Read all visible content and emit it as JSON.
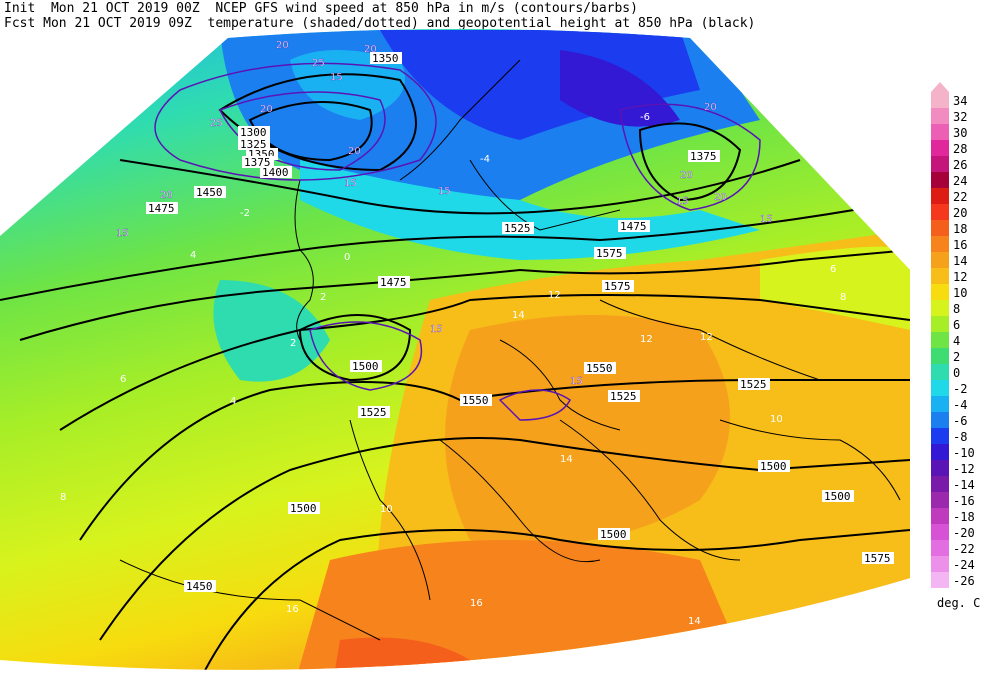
{
  "header": {
    "init_line": "Init  Mon 21 OCT 2019 00Z  NCEP GFS wind speed at 850 hPa in m/s (contours/barbs)",
    "fcst_line": "Fcst Mon 21 OCT 2019 09Z  temperature (shaded/dotted) and geopotential height at 850 hPa (black)"
  },
  "colorbar": {
    "unit": "deg. C",
    "levels": [
      {
        "label": "34",
        "color": "#f4b3c8"
      },
      {
        "label": "32",
        "color": "#f28cc0"
      },
      {
        "label": "30",
        "color": "#ec5fb4"
      },
      {
        "label": "28",
        "color": "#e0279c"
      },
      {
        "label": "26",
        "color": "#c4157a"
      },
      {
        "label": "24",
        "color": "#a5003a"
      },
      {
        "label": "22",
        "color": "#dd1c14"
      },
      {
        "label": "20",
        "color": "#f5381d"
      },
      {
        "label": "18",
        "color": "#f45f1b"
      },
      {
        "label": "16",
        "color": "#f7831c"
      },
      {
        "label": "14",
        "color": "#f6a11c"
      },
      {
        "label": "12",
        "color": "#f7bd19"
      },
      {
        "label": "10",
        "color": "#f7dc0f"
      },
      {
        "label": "8",
        "color": "#d7f31d"
      },
      {
        "label": "6",
        "color": "#a8ee27"
      },
      {
        "label": "4",
        "color": "#6ee445"
      },
      {
        "label": "2",
        "color": "#3fdc72"
      },
      {
        "label": "0",
        "color": "#2fdcb0"
      },
      {
        "label": "-2",
        "color": "#1fd9e9"
      },
      {
        "label": "-4",
        "color": "#1ab1f3"
      },
      {
        "label": "-6",
        "color": "#1b7ff0"
      },
      {
        "label": "-8",
        "color": "#1c3cf0"
      },
      {
        "label": "-10",
        "color": "#3318d4"
      },
      {
        "label": "-12",
        "color": "#5a14b6"
      },
      {
        "label": "-14",
        "color": "#7a1aa8"
      },
      {
        "label": "-16",
        "color": "#9b28ad"
      },
      {
        "label": "-18",
        "color": "#be3bbd"
      },
      {
        "label": "-20",
        "color": "#d653d6"
      },
      {
        "label": "-22",
        "color": "#e26ee2"
      },
      {
        "label": "-24",
        "color": "#ec90ea"
      },
      {
        "label": "-26",
        "color": "#f4b6f2"
      }
    ]
  },
  "height_labels": [
    "1300",
    "1325",
    "1350",
    "1375",
    "1400",
    "1450",
    "1475",
    "1475",
    "1500",
    "1525",
    "1550",
    "1575",
    "1575",
    "1550",
    "1525",
    "1525",
    "1500",
    "1500",
    "1500",
    "1450",
    "1375",
    "1350",
    "1475",
    "1500",
    "1575",
    "1525"
  ],
  "wind_labels": [
    "20",
    "25",
    "15",
    "20",
    "20",
    "15",
    "25",
    "20",
    "15",
    "20",
    "15",
    "20",
    "15",
    "20",
    "15",
    "20",
    "15",
    "15"
  ],
  "temp_labels": [
    "-2",
    "0",
    "-4",
    "-6",
    "2",
    "4",
    "6",
    "8",
    "10",
    "12",
    "14",
    "16",
    "14",
    "12",
    "10",
    "8",
    "6",
    "4",
    "2",
    "12",
    "14",
    "16"
  ]
}
